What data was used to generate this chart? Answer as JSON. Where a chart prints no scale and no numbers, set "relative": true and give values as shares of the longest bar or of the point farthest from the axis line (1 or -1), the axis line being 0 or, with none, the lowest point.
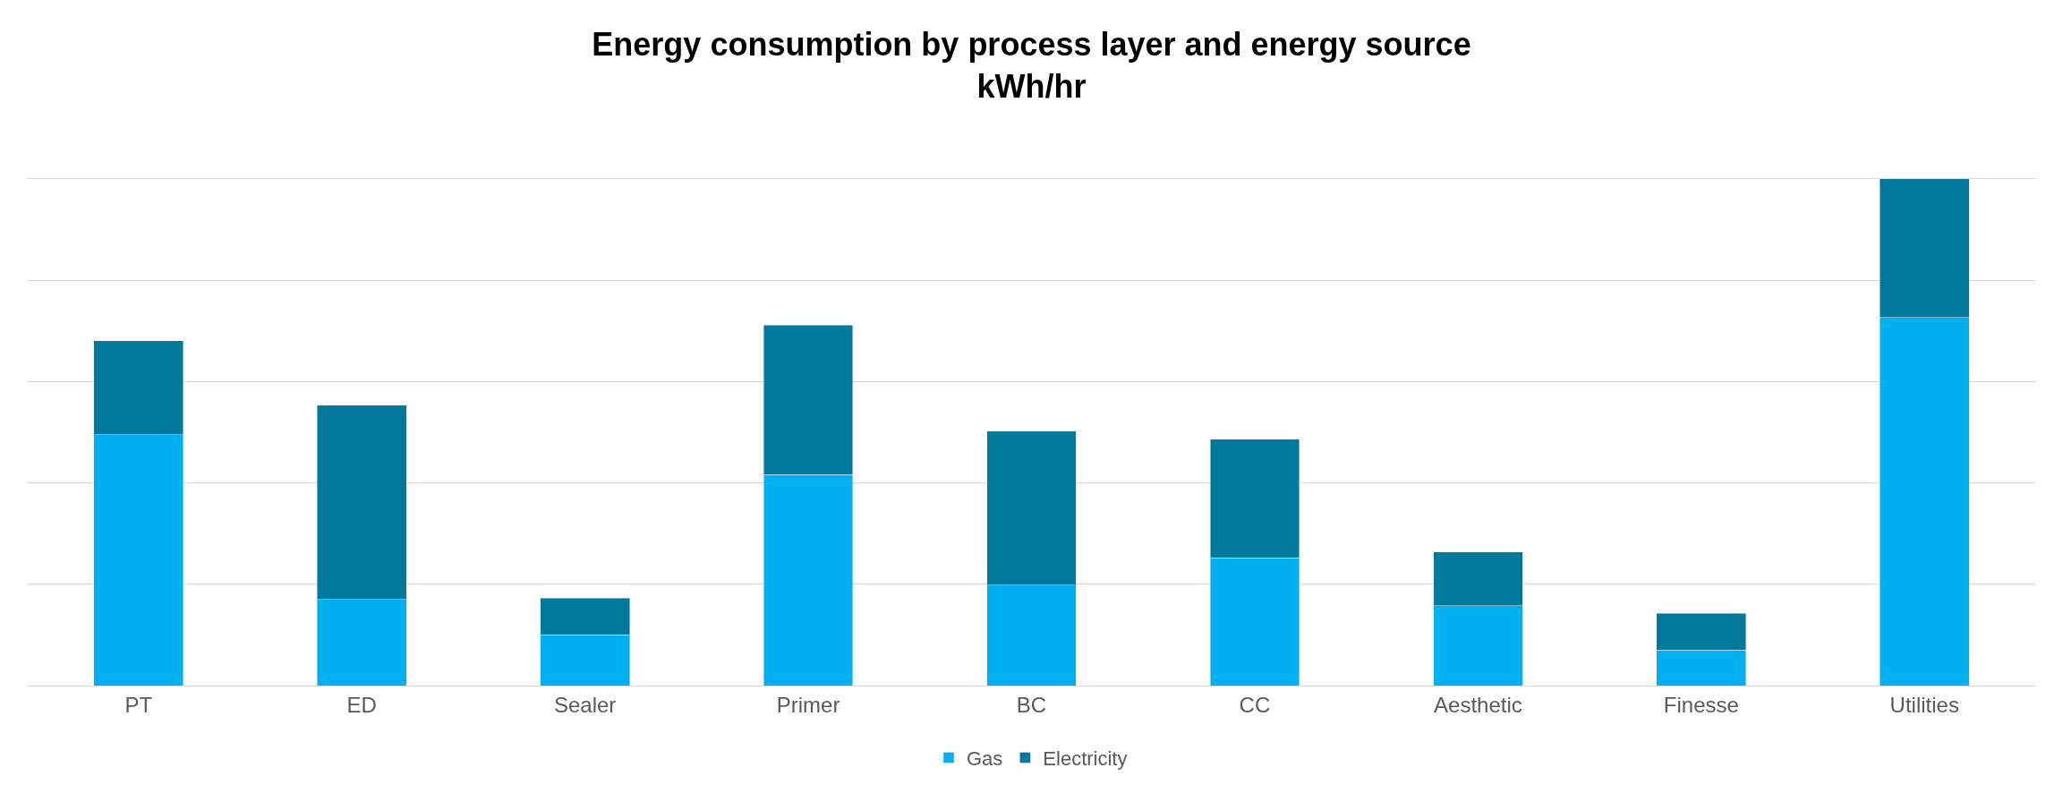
{
  "chart_data": {
    "type": "bar",
    "title": "Energy consumption by process layer and energy source",
    "subtitle": "kWh/hr",
    "categories": [
      "PT",
      "ED",
      "Sealer",
      "Primer",
      "BC",
      "CC",
      "Aesthetic",
      "Finesse",
      "Utilities"
    ],
    "series": [
      {
        "name": "Gas",
        "color": "#00b0f0",
        "values": [
          0.495,
          0.17,
          0.1,
          0.416,
          0.198,
          0.252,
          0.158,
          0.07,
          0.726
        ]
      },
      {
        "name": "Electricity",
        "color": "#00799c",
        "values": [
          0.185,
          0.383,
          0.073,
          0.295,
          0.304,
          0.234,
          0.106,
          0.073,
          0.274
        ]
      }
    ],
    "stacked": true,
    "relative": true,
    "grid": "y",
    "legend": "bottom"
  }
}
